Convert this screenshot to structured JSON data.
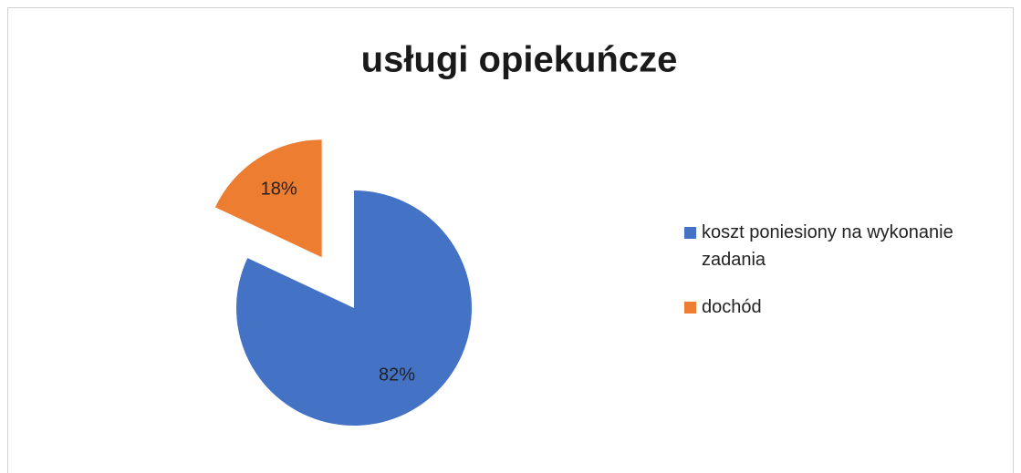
{
  "chart_data": {
    "type": "pie",
    "title": "usługi opiekuńcze",
    "categories": [
      "koszt poniesiony na wykonanie zadania",
      "dochód"
    ],
    "values": [
      82,
      18
    ],
    "value_labels": [
      "82%",
      "18%"
    ],
    "colors": [
      "#4472c4",
      "#ed7d31"
    ],
    "exploded": [
      false,
      true
    ],
    "legend": "right"
  }
}
